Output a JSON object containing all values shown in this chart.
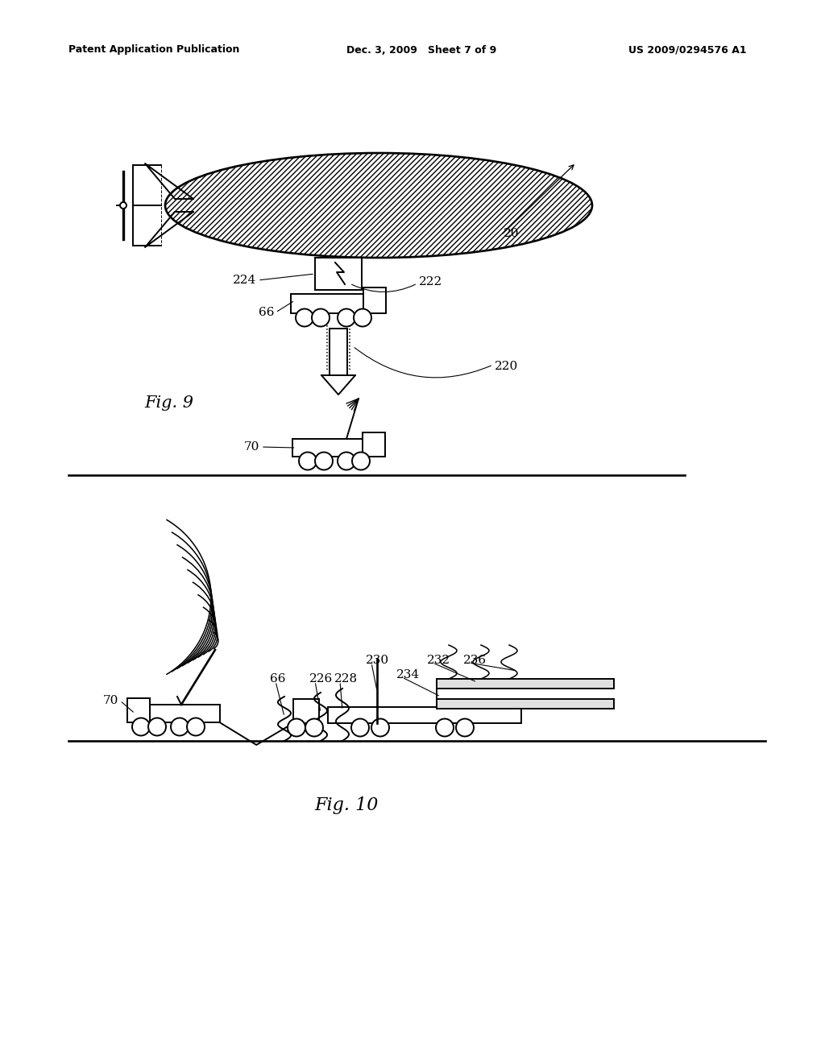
{
  "bg_color": "#ffffff",
  "line_color": "#000000",
  "header_left": "Patent Application Publication",
  "header_mid": "Dec. 3, 2009   Sheet 7 of 9",
  "header_right": "US 2009/0294576 A1",
  "fig9_label": "Fig. 9",
  "fig10_label": "Fig. 10"
}
